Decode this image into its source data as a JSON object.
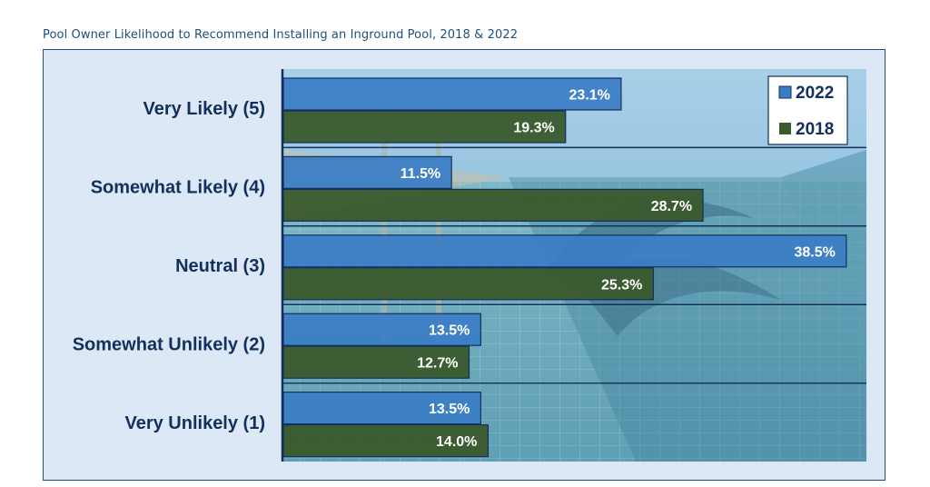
{
  "page": {
    "title": "Pool Owner Likelihood to Recommend Installing an Inground Pool, 2018 & 2022"
  },
  "chart_data": {
    "type": "bar",
    "orientation": "horizontal",
    "title": "Pool Owner Likelihood to Recommend Installing an Inground Pool, 2018 & 2022",
    "categories": [
      "Very Likely (5)",
      "Somewhat Likely (4)",
      "Neutral (3)",
      "Somewhat Unlikely (2)",
      "Very Unlikely (1)"
    ],
    "series": [
      {
        "name": "2022",
        "color": "#3b7dc4",
        "values": [
          23.1,
          11.5,
          38.5,
          13.5,
          13.5
        ],
        "labels": [
          "23.1%",
          "11.5%",
          "38.5%",
          "13.5%",
          "13.5%"
        ]
      },
      {
        "name": "2018",
        "color": "#3a5a2c",
        "values": [
          19.3,
          28.7,
          25.3,
          12.7,
          14.0
        ],
        "labels": [
          "19.3%",
          "28.7%",
          "25.3%",
          "12.7%",
          "14.0%"
        ]
      }
    ],
    "xlim": [
      0,
      40
    ],
    "value_format": "percent",
    "legend_position": "top-right",
    "grid": false
  }
}
